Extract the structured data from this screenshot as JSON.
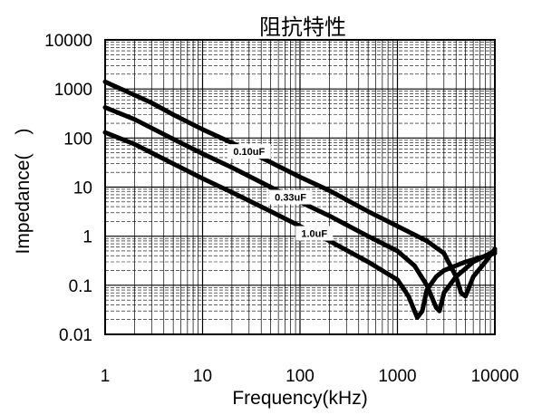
{
  "chart_data": {
    "type": "line",
    "title": "阻抗特性",
    "xlabel": "Frequency(kHz)",
    "ylabel": "Impedance(　)",
    "x_scale": "log",
    "y_scale": "log",
    "xlim": [
      1,
      10000
    ],
    "ylim": [
      0.01,
      10000
    ],
    "grid": true,
    "x_ticks": [
      "1",
      "10",
      "100",
      "1000",
      "10000"
    ],
    "y_ticks": [
      "10000",
      "1000",
      "100",
      "10",
      "1",
      "0.1",
      "0.01"
    ],
    "series": [
      {
        "name": "0.10uF",
        "x": [
          1,
          2,
          3,
          5,
          10,
          20,
          50,
          100,
          200,
          500,
          1000,
          2000,
          3000,
          4000,
          4500,
          5000,
          6000,
          8000,
          10000
        ],
        "y": [
          1400,
          750,
          520,
          300,
          150,
          80,
          32,
          16,
          8.5,
          3.2,
          1.6,
          0.8,
          0.45,
          0.15,
          0.07,
          0.06,
          0.15,
          0.3,
          0.55
        ]
      },
      {
        "name": "0.33uF",
        "x": [
          1,
          2,
          3,
          5,
          10,
          20,
          50,
          100,
          200,
          500,
          1000,
          1500,
          2000,
          2500,
          2700,
          3000,
          4000,
          6000,
          10000
        ],
        "y": [
          420,
          240,
          160,
          95,
          48,
          25,
          10,
          5,
          2.6,
          1.0,
          0.5,
          0.25,
          0.1,
          0.035,
          0.03,
          0.07,
          0.15,
          0.3,
          0.5
        ]
      },
      {
        "name": "1.0uF",
        "x": [
          1,
          2,
          3,
          5,
          10,
          20,
          50,
          100,
          200,
          500,
          1000,
          1300,
          1600,
          1800,
          2000,
          2500,
          3000,
          5000,
          10000
        ],
        "y": [
          130,
          75,
          50,
          30,
          15,
          7.8,
          3.2,
          1.6,
          0.8,
          0.3,
          0.13,
          0.06,
          0.022,
          0.03,
          0.08,
          0.15,
          0.2,
          0.3,
          0.45
        ]
      }
    ]
  }
}
